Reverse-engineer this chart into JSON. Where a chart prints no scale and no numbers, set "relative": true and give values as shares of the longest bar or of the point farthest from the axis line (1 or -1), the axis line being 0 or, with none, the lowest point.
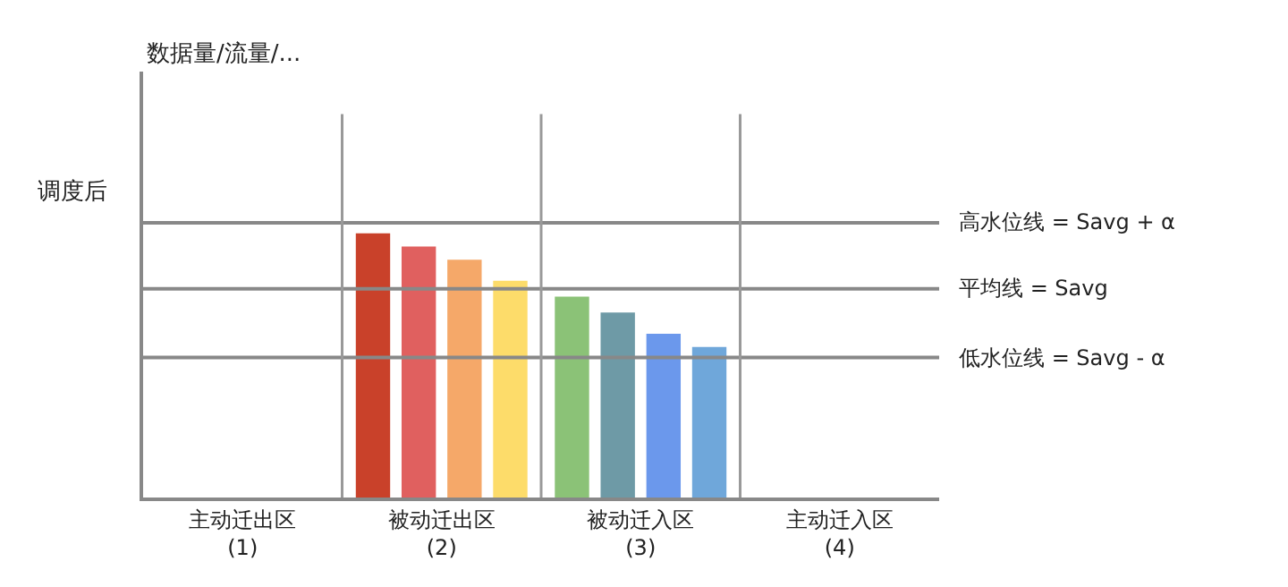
{
  "chart_data": {
    "type": "bar",
    "relative": true,
    "categories": [
      "主动迁出区\n(1)",
      "被动迁出区\n(2)",
      "被动迁入区\n(3)",
      "主动迁入区\n(4)"
    ],
    "series": [
      {
        "values": [
          null,
          1,
          0.76,
          null
        ],
        "colors": [
          null,
          "#c9412a",
          "#8bc277",
          null
        ]
      },
      {
        "values": [
          null,
          0.95,
          0.7,
          null
        ],
        "colors": [
          null,
          "#e0605f",
          "#6e9aa6",
          null
        ]
      },
      {
        "values": [
          null,
          0.9,
          0.62,
          null
        ],
        "colors": [
          null,
          "#f5a869",
          "#6b98ec",
          null
        ]
      },
      {
        "values": [
          null,
          0.82,
          0.57,
          null
        ],
        "colors": [
          null,
          "#fddc6a",
          "#6fa7da",
          null
        ]
      }
    ],
    "ref_lines": [
      {
        "axis": "y",
        "value": 1.04,
        "label": "高水位线 = Savg + α",
        "color": "#888888"
      },
      {
        "axis": "y",
        "value": 0.79,
        "label": "平均线 = Savg",
        "color": "#888888"
      },
      {
        "axis": "y",
        "value": 0.53,
        "label": "低水位线 = Savg - α",
        "color": "#888888"
      }
    ],
    "annotations": [
      "数据量/流量/...",
      "调度后"
    ],
    "grid": "x"
  }
}
